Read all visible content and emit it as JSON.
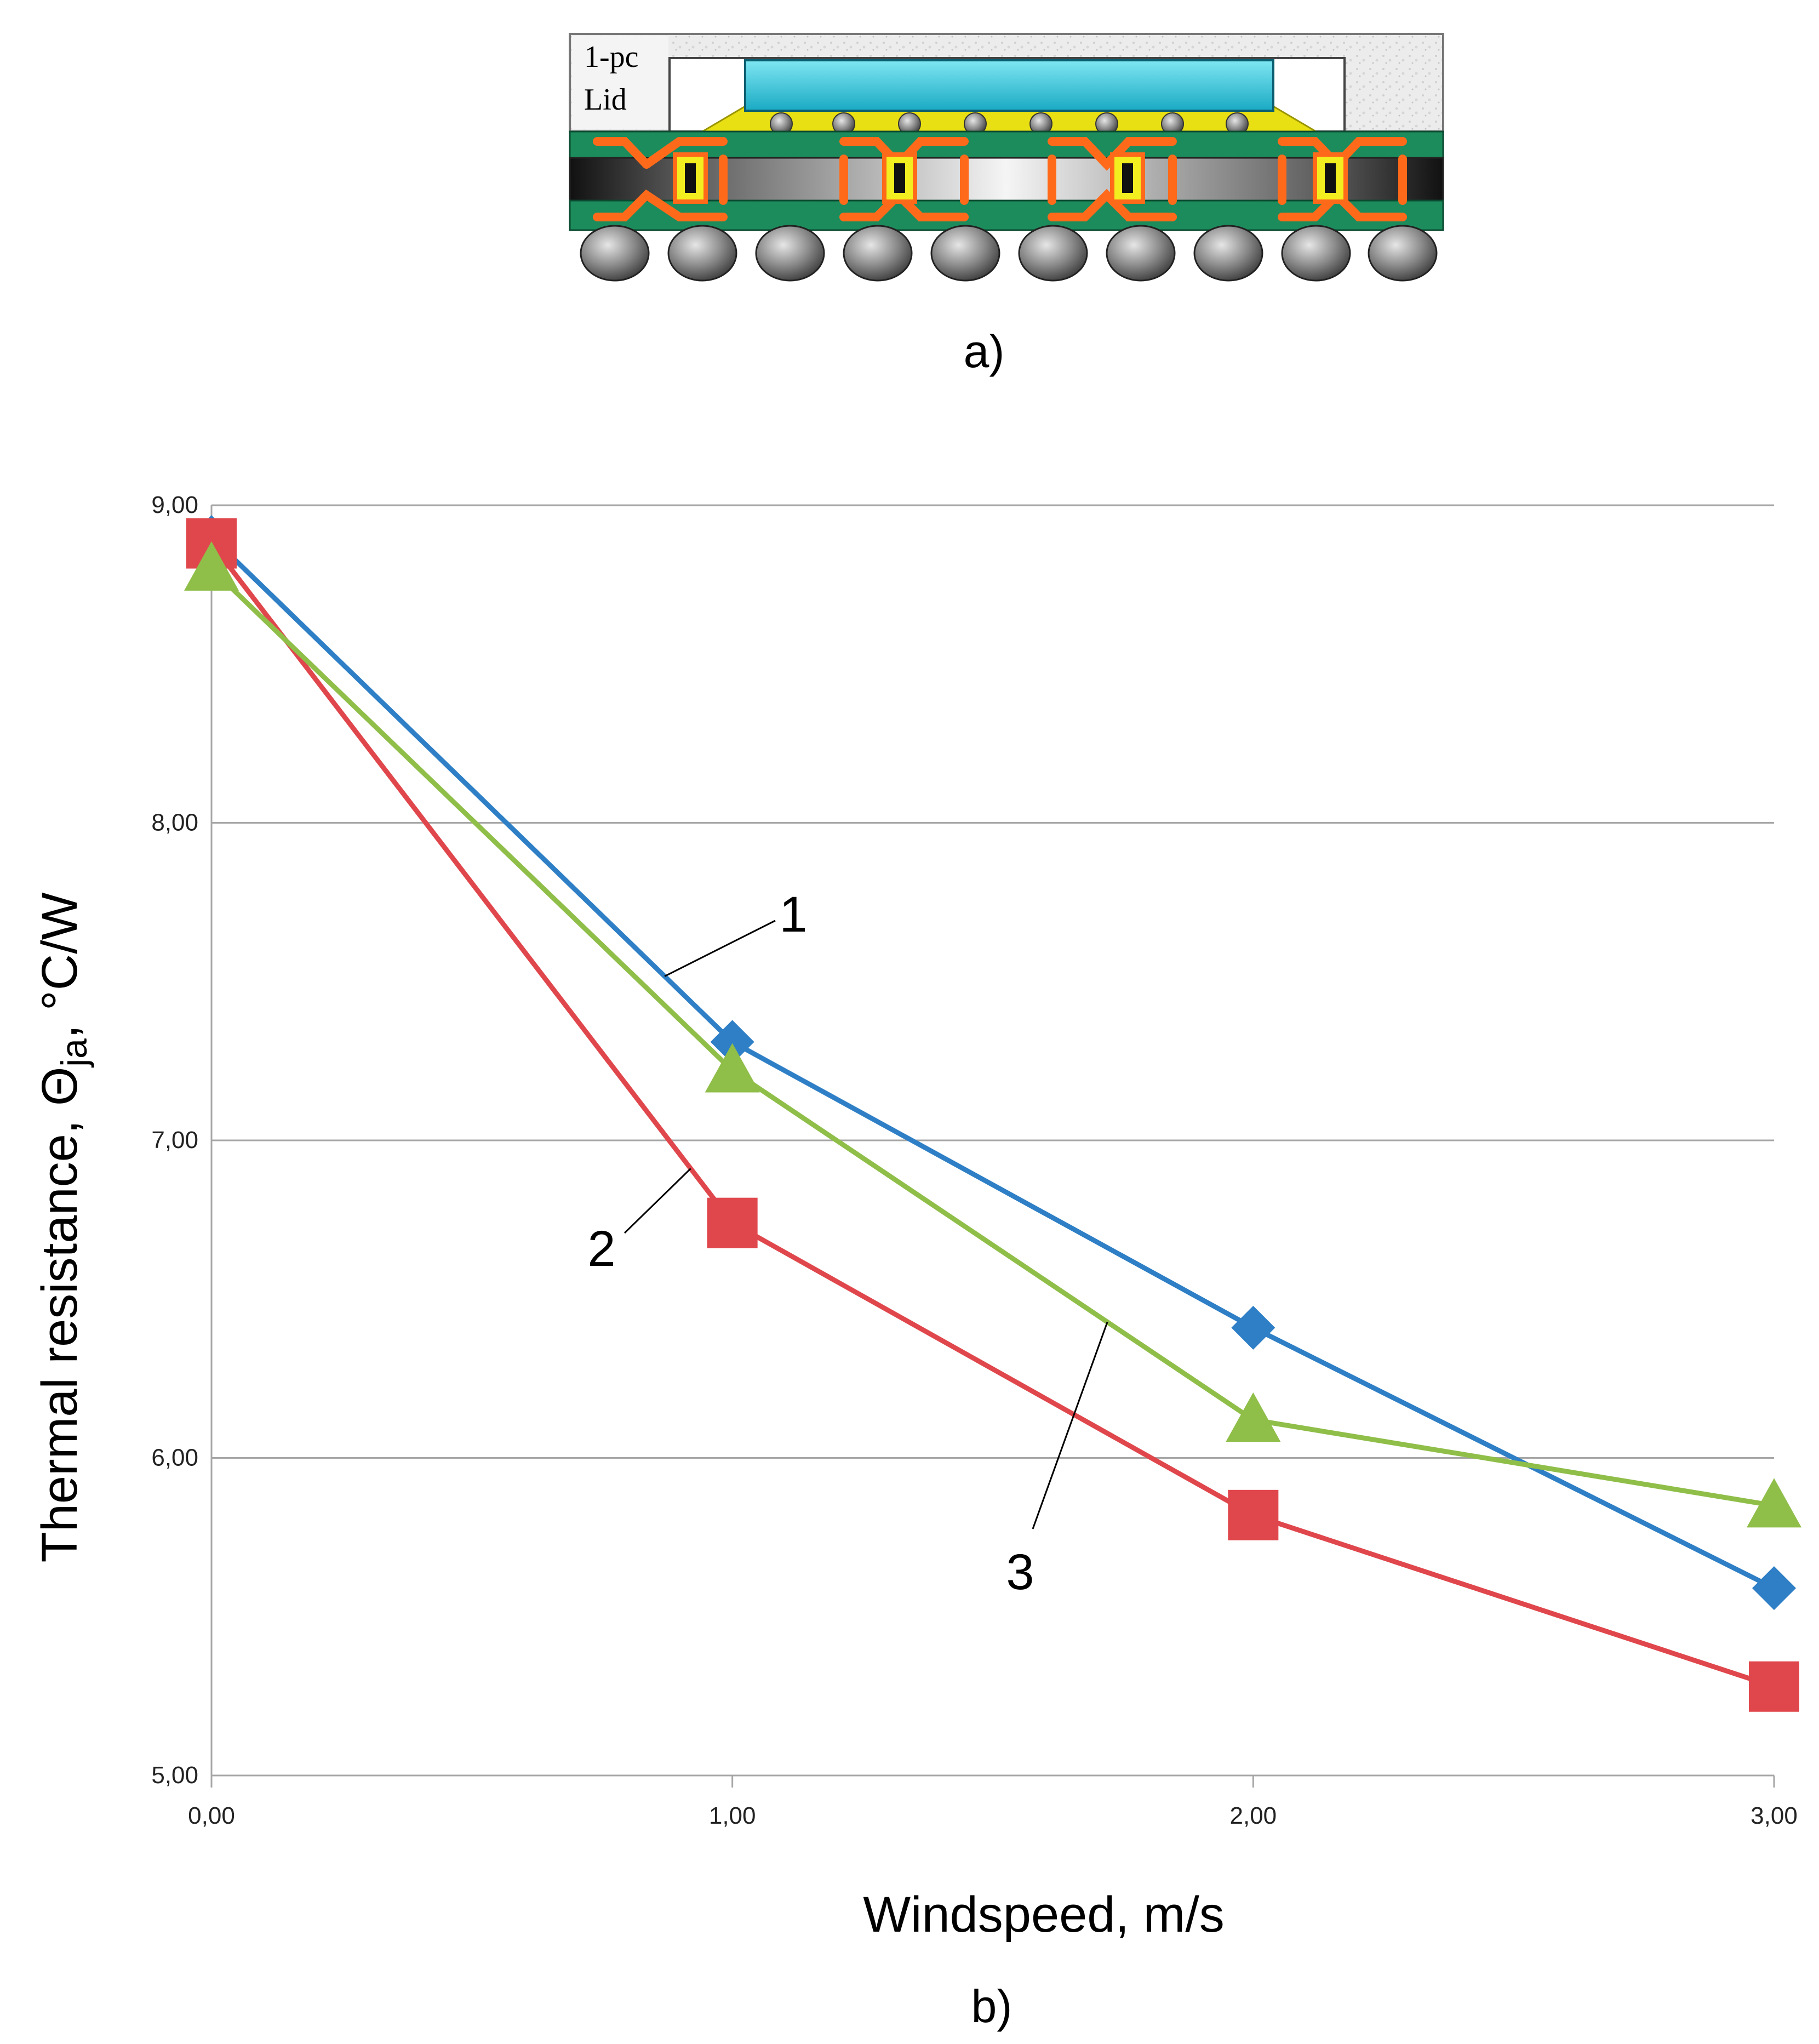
{
  "figure_a": {
    "caption": "a)",
    "lid_label_line1": "1-pc",
    "lid_label_line2": "Lid"
  },
  "figure_b": {
    "caption": "b)"
  },
  "colors": {
    "series1": "#2e7fc6",
    "series2": "#e0474c",
    "series3": "#8fbe49",
    "grid": "#a6a6a6",
    "text": "#000000",
    "die": "#2ec7dc",
    "underfill": "#e8e012",
    "substrate": "#1c8c5c",
    "routing": "#ff6a1a"
  },
  "chart_data": {
    "type": "line",
    "title": "",
    "xlabel": "Windspeed, m/s",
    "ylabel_main": "Thermal resistance, Θ",
    "ylabel_sub": "ja",
    "ylabel_unit": ", °C/W",
    "xlim": [
      0,
      3
    ],
    "ylim": [
      5,
      9
    ],
    "x": [
      0,
      1,
      2,
      3
    ],
    "x_tick_labels": [
      "0,00",
      "1,00",
      "2,00",
      "3,00"
    ],
    "y_ticks": [
      5,
      6,
      7,
      8,
      9
    ],
    "y_tick_labels": [
      "5,00",
      "6,00",
      "7,00",
      "8,00",
      "9,00"
    ],
    "grid": true,
    "series": [
      {
        "name": "1",
        "marker": "diamond",
        "values": [
          8.9,
          7.31,
          6.41,
          5.59
        ]
      },
      {
        "name": "2",
        "marker": "square",
        "values": [
          8.88,
          6.74,
          5.82,
          5.28
        ]
      },
      {
        "name": "3",
        "marker": "triangle",
        "values": [
          8.8,
          7.22,
          6.12,
          5.85
        ]
      }
    ],
    "annotations": [
      {
        "text": "1",
        "series": 0
      },
      {
        "text": "2",
        "series": 1
      },
      {
        "text": "3",
        "series": 2
      }
    ]
  }
}
